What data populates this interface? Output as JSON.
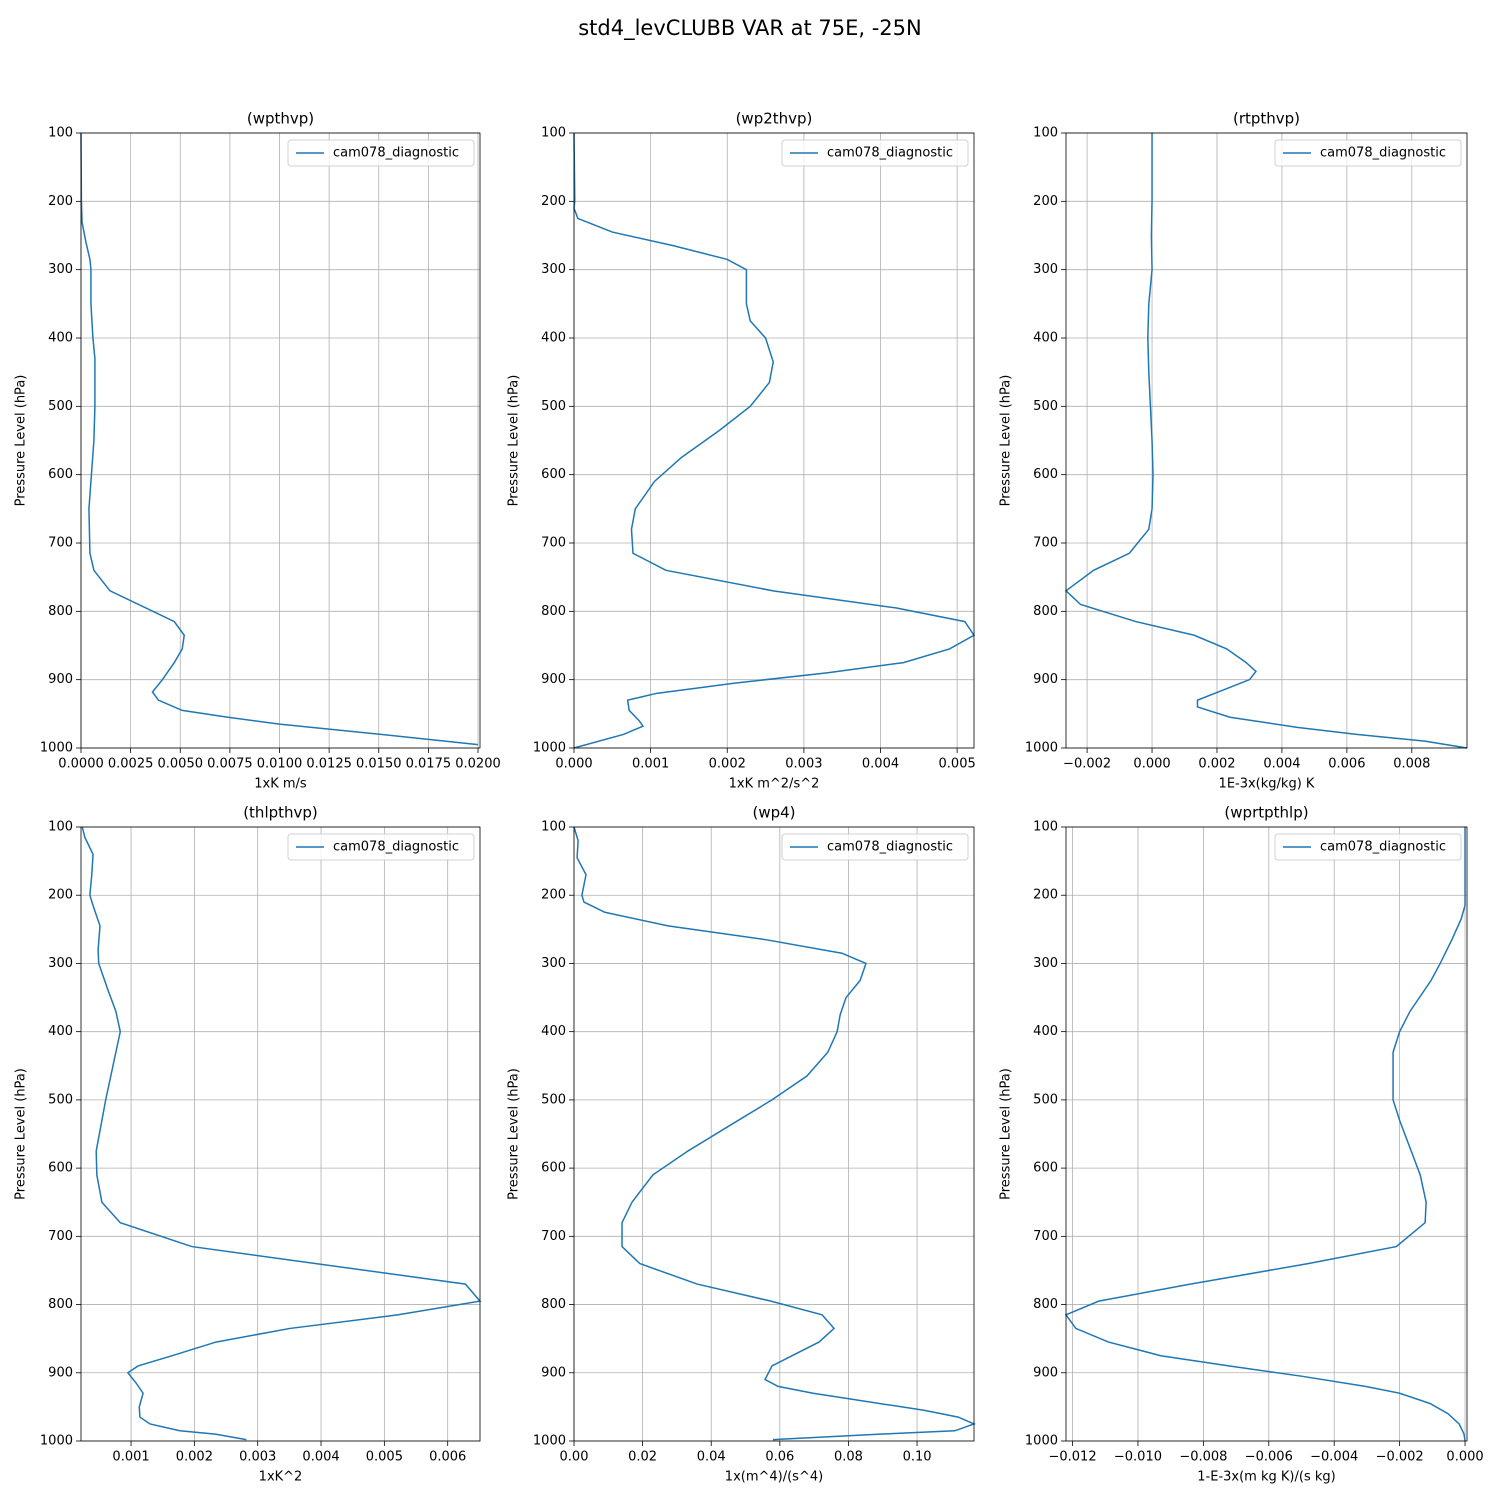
{
  "title": "std4_levCLUBB VAR at 75E, -25N",
  "chart_data": [
    {
      "type": "line",
      "title": "(wpthvp)",
      "xlabel": "1xK m/s",
      "ylabel": "Pressure Level (hPa)",
      "y": [
        100,
        200,
        230,
        260,
        285,
        300,
        350,
        400,
        430,
        500,
        550,
        610,
        650,
        715,
        740,
        770,
        815,
        835,
        855,
        875,
        900,
        918,
        930,
        945,
        955,
        965,
        980,
        995
      ],
      "series": [
        {
          "name": "cam078_diagnostic",
          "color": "#1f77b4",
          "values": [
            0,
            2e-05,
            5e-05,
            0.00025,
            0.00045,
            0.0005,
            0.0005,
            0.0006,
            0.0007,
            0.0007,
            0.00065,
            0.0005,
            0.0004,
            0.00045,
            0.00065,
            0.00146,
            0.0047,
            0.0052,
            0.0051,
            0.0047,
            0.0041,
            0.0036,
            0.0039,
            0.0051,
            0.0074,
            0.01,
            0.0151,
            0.02
          ]
        }
      ],
      "xlim": [
        0,
        0.0201
      ],
      "ylim": [
        1000,
        100
      ],
      "xticks": [
        {
          "value": 0,
          "label": "0.0000"
        },
        {
          "value": 0.0025,
          "label": "0.0025"
        },
        {
          "value": 0.005,
          "label": "0.0050"
        },
        {
          "value": 0.0075,
          "label": "0.0075"
        },
        {
          "value": 0.01,
          "label": "0.0100"
        },
        {
          "value": 0.0125,
          "label": "0.0125"
        },
        {
          "value": 0.015,
          "label": "0.0150"
        },
        {
          "value": 0.0175,
          "label": "0.0175"
        },
        {
          "value": 0.02,
          "label": "0.0200"
        }
      ],
      "yticks": [
        100,
        200,
        300,
        400,
        500,
        600,
        700,
        800,
        900,
        1000
      ],
      "grid": true,
      "legend": "upper right"
    },
    {
      "type": "line",
      "title": "(wp2thvp)",
      "xlabel": "1xK m^2/s^2",
      "ylabel": "Pressure Level (hPa)",
      "y": [
        100,
        200,
        210,
        225,
        245,
        265,
        285,
        300,
        350,
        375,
        400,
        435,
        465,
        500,
        535,
        575,
        610,
        650,
        680,
        715,
        740,
        770,
        795,
        815,
        835,
        855,
        875,
        890,
        905,
        920,
        930,
        945,
        960,
        968,
        980,
        1000
      ],
      "series": [
        {
          "name": "cam078_diagnostic",
          "color": "#1f77b4",
          "values": [
            0,
            1e-05,
            0,
            5e-05,
            0.0005,
            0.0013,
            0.002,
            0.00225,
            0.00225,
            0.0023,
            0.0025,
            0.0026,
            0.00255,
            0.0023,
            0.0019,
            0.0014,
            0.00105,
            0.0008,
            0.00075,
            0.00077,
            0.0012,
            0.0026,
            0.0042,
            0.0051,
            0.00522,
            0.0049,
            0.0043,
            0.0033,
            0.0021,
            0.00108,
            0.0007,
            0.00072,
            0.00085,
            0.0009,
            0.00065,
            0
          ]
        }
      ],
      "xlim": [
        0,
        0.00522
      ],
      "ylim": [
        1000,
        100
      ],
      "xticks": [
        {
          "value": 0,
          "label": "0.000"
        },
        {
          "value": 0.001,
          "label": "0.001"
        },
        {
          "value": 0.002,
          "label": "0.002"
        },
        {
          "value": 0.003,
          "label": "0.003"
        },
        {
          "value": 0.004,
          "label": "0.004"
        },
        {
          "value": 0.005,
          "label": "0.005"
        }
      ],
      "yticks": [
        100,
        200,
        300,
        400,
        500,
        600,
        700,
        800,
        900,
        1000
      ],
      "grid": true,
      "legend": "upper right"
    },
    {
      "type": "line",
      "title": "(rtpthvp)",
      "xlabel": "1E-3x(kg/kg) K",
      "ylabel": "Pressure Level (hPa)",
      "y": [
        100,
        200,
        250,
        300,
        350,
        400,
        450,
        500,
        550,
        600,
        650,
        680,
        715,
        740,
        770,
        790,
        815,
        835,
        855,
        875,
        888,
        900,
        930,
        940,
        955,
        970,
        980,
        990,
        1000
      ],
      "series": [
        {
          "name": "cam078_diagnostic",
          "color": "#1f77b4",
          "values": [
            0,
            0,
            -2e-05,
            0,
            -0.0001,
            -0.00013,
            -0.0001,
            -5e-05,
            0,
            3e-05,
            0,
            -0.0001,
            -0.0007,
            -0.0018,
            -0.00265,
            -0.0022,
            -0.0005,
            0.0013,
            0.0023,
            0.0029,
            0.0032,
            0.003,
            0.0014,
            0.0014,
            0.0024,
            0.0045,
            0.0063,
            0.0084,
            0.0097
          ]
        }
      ],
      "xlim": [
        -0.00265,
        0.0097
      ],
      "ylim": [
        1000,
        100
      ],
      "xticks": [
        {
          "value": -0.002,
          "label": "−0.002"
        },
        {
          "value": 0,
          "label": "0.000"
        },
        {
          "value": 0.002,
          "label": "0.002"
        },
        {
          "value": 0.004,
          "label": "0.004"
        },
        {
          "value": 0.006,
          "label": "0.006"
        },
        {
          "value": 0.008,
          "label": "0.008"
        }
      ],
      "yticks": [
        100,
        200,
        300,
        400,
        500,
        600,
        700,
        800,
        900,
        1000
      ],
      "grid": true,
      "legend": "upper right"
    },
    {
      "type": "line",
      "title": "(thlpthvp)",
      "xlabel": "1xK^2",
      "ylabel": "Pressure Level (hPa)",
      "y": [
        100,
        115,
        140,
        170,
        200,
        215,
        245,
        280,
        300,
        340,
        370,
        400,
        500,
        575,
        610,
        650,
        680,
        715,
        770,
        795,
        815,
        835,
        855,
        875,
        890,
        900,
        915,
        930,
        950,
        965,
        975,
        985,
        990,
        998
      ],
      "series": [
        {
          "name": "cam078_diagnostic",
          "color": "#1f77b4",
          "values": [
            0.00023,
            0.00027,
            0.0004,
            0.00038,
            0.00035,
            0.0004,
            0.00051,
            0.00048,
            0.00049,
            0.00064,
            0.00076,
            0.00083,
            0.0006,
            0.00045,
            0.00046,
            0.00054,
            0.00083,
            0.00196,
            0.00628,
            0.00651,
            0.00522,
            0.00351,
            0.00234,
            0.00165,
            0.00111,
            0.00095,
            0.00108,
            0.00119,
            0.00113,
            0.00114,
            0.0013,
            0.00177,
            0.00233,
            0.00282
          ]
        }
      ],
      "xlim": [
        0.00021,
        0.00651
      ],
      "ylim": [
        1000,
        100
      ],
      "xticks": [
        0.001,
        0.002,
        0.003,
        0.004,
        0.005,
        0.006
      ],
      "yticks": [
        100,
        200,
        300,
        400,
        500,
        600,
        700,
        800,
        900,
        1000
      ],
      "grid": true,
      "legend": "upper right"
    },
    {
      "type": "line",
      "title": "(wp4)",
      "xlabel": "1x(m^4)/(s^4)",
      "ylabel": "Pressure Level (hPa)",
      "y": [
        100,
        120,
        145,
        170,
        200,
        210,
        225,
        245,
        265,
        285,
        300,
        325,
        350,
        375,
        400,
        430,
        465,
        500,
        540,
        575,
        610,
        650,
        680,
        715,
        740,
        770,
        795,
        815,
        835,
        855,
        890,
        910,
        920,
        930,
        955,
        965,
        975,
        985,
        990,
        998
      ],
      "series": [
        {
          "name": "cam078_diagnostic",
          "color": "#1f77b4",
          "values": [
            0,
            0.0012,
            0.0009,
            0.0035,
            0.0023,
            0.0029,
            0.009,
            0.0274,
            0.0557,
            0.0781,
            0.0851,
            0.0834,
            0.0793,
            0.0776,
            0.0767,
            0.074,
            0.0679,
            0.0577,
            0.0446,
            0.0332,
            0.023,
            0.0169,
            0.014,
            0.014,
            0.0192,
            0.0359,
            0.0574,
            0.0723,
            0.0758,
            0.0714,
            0.0577,
            0.0557,
            0.0595,
            0.0697,
            0.102,
            0.112,
            0.1166,
            0.111,
            0.0892,
            0.058
          ]
        }
      ],
      "xlim": [
        0,
        0.1166
      ],
      "ylim": [
        1000,
        100
      ],
      "xticks": [
        {
          "value": 0,
          "label": "0.00"
        },
        {
          "value": 0.02,
          "label": "0.02"
        },
        {
          "value": 0.04,
          "label": "0.04"
        },
        {
          "value": 0.06,
          "label": "0.06"
        },
        {
          "value": 0.08,
          "label": "0.08"
        },
        {
          "value": 0.1,
          "label": "0.10"
        }
      ],
      "yticks": [
        100,
        200,
        300,
        400,
        500,
        600,
        700,
        800,
        900,
        1000
      ],
      "grid": true,
      "legend": "upper right"
    },
    {
      "type": "line",
      "title": "(wprtpthlp)",
      "xlabel": "1-E-3x(m kg K)/(s kg)",
      "ylabel": "Pressure Level (hPa)",
      "y": [
        100,
        215,
        235,
        265,
        300,
        325,
        370,
        400,
        430,
        465,
        500,
        530,
        610,
        650,
        680,
        715,
        740,
        770,
        795,
        815,
        835,
        855,
        875,
        890,
        905,
        920,
        930,
        945,
        960,
        975,
        990,
        1000
      ],
      "series": [
        {
          "name": "cam078_diagnostic",
          "color": "#1f77b4",
          "values": [
            0,
            0,
            -0.00012,
            -0.0004,
            -0.00076,
            -0.00104,
            -0.00168,
            -0.002,
            -0.0022,
            -0.0022,
            -0.0022,
            -0.002,
            -0.00137,
            -0.00119,
            -0.00122,
            -0.0021,
            -0.0048,
            -0.0084,
            -0.0112,
            -0.0122,
            -0.0119,
            -0.0109,
            -0.0093,
            -0.0072,
            -0.005,
            -0.00305,
            -0.002,
            -0.00107,
            -0.00052,
            -0.00018,
            -3e-05,
            0
          ]
        }
      ],
      "xlim": [
        -0.0122,
        6e-05
      ],
      "ylim": [
        1000,
        100
      ],
      "xticks": [
        {
          "value": -0.012,
          "label": "−0.012"
        },
        {
          "value": -0.01,
          "label": "−0.010"
        },
        {
          "value": -0.008,
          "label": "−0.008"
        },
        {
          "value": -0.006,
          "label": "−0.006"
        },
        {
          "value": -0.004,
          "label": "−0.004"
        },
        {
          "value": -0.002,
          "label": "−0.002"
        },
        {
          "value": 0,
          "label": "0.000"
        }
      ],
      "yticks": [
        100,
        200,
        300,
        400,
        500,
        600,
        700,
        800,
        900,
        1000
      ],
      "grid": true,
      "legend": "upper right"
    }
  ]
}
